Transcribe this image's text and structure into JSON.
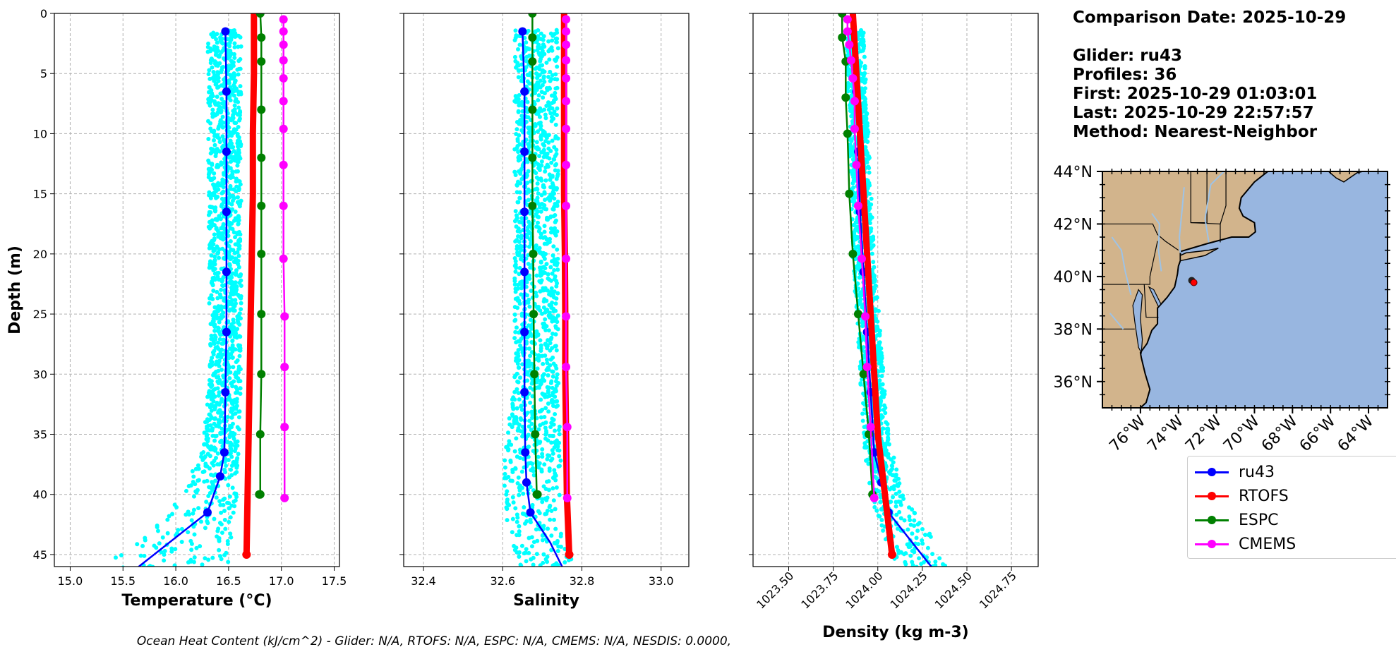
{
  "info": {
    "comparison_date": "Comparison Date: 2025-10-29",
    "glider": "Glider: ru43",
    "profiles": "Profiles: 36",
    "first": "First: 2025-10-29 01:03:01",
    "last": "Last: 2025-10-29 22:57:57",
    "method": "Method: Nearest-Neighbor"
  },
  "footer": "Ocean Heat Content (kJ/cm^2) - Glider: N/A,  RTOFS: N/A,  ESPC: N/A,  CMEMS: N/A,  NESDIS: 0.0000,",
  "colors": {
    "ru43": "#0000ff",
    "RTOFS": "#ff0000",
    "ESPC": "#008000",
    "CMEMS": "#ff00ff",
    "scatter": "#00ffff",
    "land": "#d2b48c",
    "ocean": "#98b6e0",
    "grid": "#b0b0b0"
  },
  "legend": [
    "ru43",
    "RTOFS",
    "ESPC",
    "CMEMS"
  ],
  "chart_data": [
    {
      "type": "line",
      "xlabel": "Temperature (°C)",
      "ylabel": "Depth (m)",
      "xlim": [
        14.85,
        17.55
      ],
      "ylim": [
        46,
        0
      ],
      "xticks": [
        "15.0",
        "15.5",
        "16.0",
        "16.5",
        "17.0",
        "17.5"
      ],
      "xtick_values": [
        15.0,
        15.5,
        16.0,
        16.5,
        17.0,
        17.5
      ],
      "yticks": [
        0,
        5,
        10,
        15,
        20,
        25,
        30,
        35,
        40,
        45
      ],
      "grid": true,
      "scatter": {
        "name": "",
        "x_range_by_depth": [
          [
            1.5,
            16.3,
            16.62
          ],
          [
            30,
            16.32,
            16.62
          ],
          [
            36,
            16.26,
            16.6
          ],
          [
            40,
            16.05,
            16.58
          ],
          [
            43,
            15.75,
            16.55
          ],
          [
            46,
            15.3,
            16.5
          ]
        ]
      },
      "series": [
        {
          "name": "ru43",
          "x": [
            16.47,
            16.48,
            16.48,
            16.48,
            16.48,
            16.48,
            16.47,
            16.46,
            16.42,
            16.3,
            15.65
          ],
          "y": [
            1.5,
            6.5,
            11.5,
            16.5,
            21.5,
            26.5,
            31.5,
            36.5,
            38.5,
            41.5,
            46
          ],
          "markers_until": 10
        },
        {
          "name": "RTOFS",
          "x": [
            16.74,
            16.74,
            16.73,
            16.73,
            16.72,
            16.71,
            16.7,
            16.69,
            16.68,
            16.67
          ],
          "y": [
            0,
            5,
            10,
            15,
            20,
            25,
            30,
            35,
            40,
            45
          ],
          "thick": true,
          "marker_last": true
        },
        {
          "name": "ESPC",
          "x": [
            16.8,
            16.81,
            16.81,
            16.81,
            16.81,
            16.81,
            16.81,
            16.81,
            16.81,
            16.8,
            16.8,
            16.79
          ],
          "y": [
            0,
            2,
            4,
            8,
            12,
            16,
            20,
            25,
            30,
            35,
            40,
            40
          ],
          "markers": true
        },
        {
          "name": "CMEMS",
          "x": [
            17.02,
            17.02,
            17.02,
            17.02,
            17.02,
            17.02,
            17.02,
            17.02,
            17.02,
            17.02,
            17.03,
            17.03,
            17.03,
            17.03
          ],
          "y": [
            0.5,
            1.5,
            2.6,
            3.9,
            5.4,
            7.3,
            9.6,
            12.6,
            16.0,
            20.4,
            25.2,
            29.4,
            34.4,
            40.3
          ],
          "markers": true
        }
      ]
    },
    {
      "type": "line",
      "xlabel": "Salinity",
      "xlim": [
        32.35,
        33.07
      ],
      "ylim": [
        46,
        0
      ],
      "xticks": [
        "32.4",
        "32.6",
        "32.8",
        "33.0"
      ],
      "xtick_values": [
        32.4,
        32.6,
        32.8,
        33.0
      ],
      "yticks": [
        0,
        5,
        10,
        15,
        20,
        25,
        30,
        35,
        40,
        45
      ],
      "grid": true,
      "scatter": {
        "name": "",
        "x_range_by_depth": [
          [
            1.5,
            32.63,
            32.74
          ],
          [
            30,
            32.63,
            32.74
          ],
          [
            38,
            32.6,
            32.75
          ],
          [
            42,
            32.61,
            32.74
          ],
          [
            46,
            32.64,
            32.78
          ]
        ]
      },
      "series": [
        {
          "name": "ru43",
          "x": [
            32.65,
            32.655,
            32.655,
            32.655,
            32.655,
            32.655,
            32.655,
            32.657,
            32.66,
            32.67,
            32.72,
            32.75
          ],
          "y": [
            1.5,
            6.5,
            11.5,
            16.5,
            21.5,
            26.5,
            31.5,
            36.5,
            39,
            41.5,
            44,
            46
          ],
          "markers_until": 10
        },
        {
          "name": "RTOFS",
          "x": [
            32.755,
            32.755,
            32.755,
            32.755,
            32.757,
            32.758,
            32.758,
            32.76,
            32.762,
            32.768
          ],
          "y": [
            0,
            5,
            10,
            15,
            20,
            25,
            30,
            35,
            40,
            45
          ],
          "thick": true,
          "marker_last": true
        },
        {
          "name": "ESPC",
          "x": [
            32.675,
            32.675,
            32.675,
            32.675,
            32.675,
            32.675,
            32.677,
            32.678,
            32.68,
            32.682,
            32.686,
            32.688
          ],
          "y": [
            0,
            2,
            4,
            8,
            12,
            16,
            20,
            25,
            30,
            35,
            40,
            40
          ],
          "markers": true
        },
        {
          "name": "CMEMS",
          "x": [
            32.76,
            32.76,
            32.76,
            32.76,
            32.76,
            32.76,
            32.76,
            32.76,
            32.76,
            32.76,
            32.76,
            32.76,
            32.763,
            32.763
          ],
          "y": [
            0.5,
            1.5,
            2.6,
            3.9,
            5.4,
            7.3,
            9.6,
            12.6,
            16.0,
            20.4,
            25.2,
            29.4,
            34.4,
            40.3
          ],
          "markers": true
        }
      ]
    },
    {
      "type": "line",
      "xlabel": "Density (kg m-3)",
      "xlim": [
        1023.3,
        1024.9
      ],
      "ylim": [
        46,
        0
      ],
      "xticks": [
        "1023.50",
        "1023.75",
        "1024.00",
        "1024.25",
        "1024.50",
        "1024.75"
      ],
      "xtick_values": [
        1023.5,
        1023.75,
        1024.0,
        1024.25,
        1024.5,
        1024.75
      ],
      "yticks": [
        0,
        5,
        10,
        15,
        20,
        25,
        30,
        35,
        40,
        45
      ],
      "grid": true,
      "scatter": {
        "name": "",
        "x_range_by_depth": [
          [
            1.5,
            1023.82,
            1023.92
          ],
          [
            20,
            1023.86,
            1023.98
          ],
          [
            35,
            1023.92,
            1024.06
          ],
          [
            40,
            1023.95,
            1024.14
          ],
          [
            46,
            1024.1,
            1024.42
          ]
        ]
      },
      "series": [
        {
          "name": "ru43",
          "x": [
            1023.86,
            1023.88,
            1023.89,
            1023.9,
            1023.92,
            1023.94,
            1023.96,
            1023.98,
            1024.02,
            1024.06,
            1024.3
          ],
          "y": [
            1.5,
            6.5,
            11.5,
            16.5,
            21.5,
            26.5,
            31.5,
            36.5,
            39,
            41.5,
            46
          ],
          "markers_until": 10
        },
        {
          "name": "RTOFS",
          "x": [
            1023.86,
            1023.88,
            1023.9,
            1023.92,
            1023.94,
            1023.96,
            1023.98,
            1024.0,
            1024.04,
            1024.08
          ],
          "y": [
            0,
            5,
            10,
            15,
            20,
            25,
            30,
            35,
            40,
            45
          ],
          "thick": true,
          "marker_last": true
        },
        {
          "name": "ESPC",
          "x": [
            1023.8,
            1023.8,
            1023.82,
            1023.82,
            1023.83,
            1023.84,
            1023.86,
            1023.89,
            1023.92,
            1023.95,
            1023.97
          ],
          "y": [
            0,
            2,
            4,
            7,
            10,
            15,
            20,
            25,
            30,
            35,
            40
          ],
          "markers": true
        },
        {
          "name": "CMEMS",
          "x": [
            1023.83,
            1023.83,
            1023.84,
            1023.85,
            1023.86,
            1023.87,
            1023.87,
            1023.88,
            1023.89,
            1023.91,
            1023.93,
            1023.94,
            1023.96,
            1023.98
          ],
          "y": [
            0.5,
            1.5,
            2.6,
            3.9,
            5.4,
            7.3,
            9.6,
            12.6,
            16.0,
            20.4,
            25.2,
            29.4,
            34.4,
            40.3
          ],
          "markers": true
        }
      ]
    },
    {
      "type": "map",
      "lat_ticks": [
        "36°N",
        "38°N",
        "40°N",
        "42°N",
        "44°N"
      ],
      "lat_values": [
        36,
        38,
        40,
        42,
        44
      ],
      "lon_ticks": [
        "76°W",
        "74°W",
        "72°W",
        "70°W",
        "68°W",
        "66°W",
        "64°W"
      ],
      "lon_values": [
        -76,
        -74,
        -72,
        -70,
        -68,
        -66,
        -64
      ],
      "lon_range": [
        -78,
        -63
      ],
      "lat_range": [
        35,
        44
      ],
      "glider_position": {
        "lon": -73.3,
        "lat": 39.85
      }
    }
  ]
}
